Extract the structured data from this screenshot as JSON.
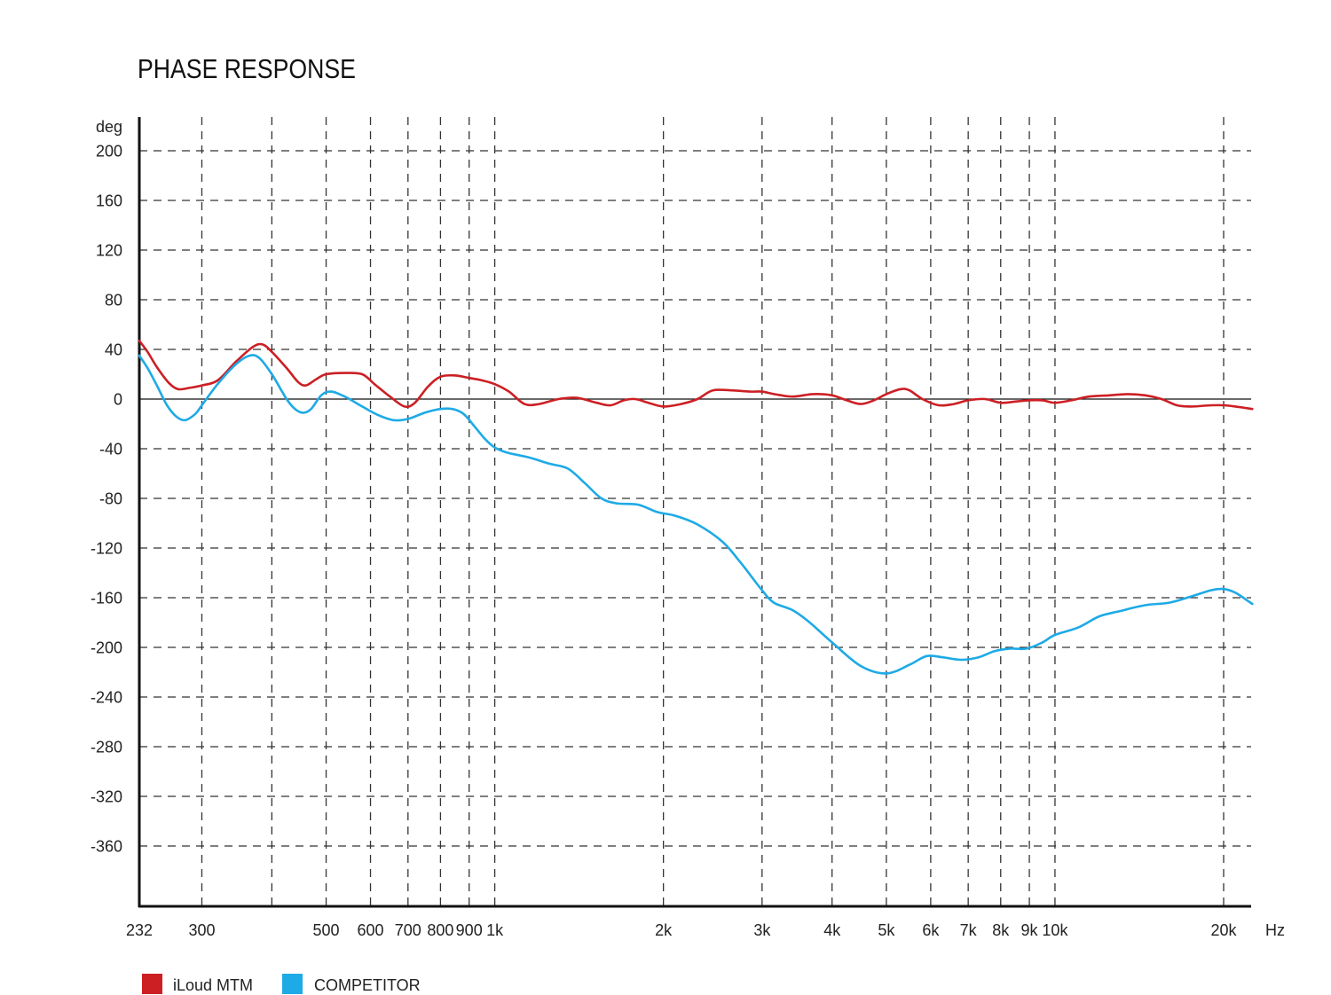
{
  "chart_data": {
    "type": "line",
    "title": "PHASE RESPONSE",
    "ylabel": "deg",
    "xlabel": "Hz",
    "x_scale": "log",
    "xlim": [
      232,
      23000
    ],
    "ylim": [
      -405,
      228
    ],
    "grid": true,
    "legend_position": "bottom-left",
    "x_ticks": [
      {
        "value": 232,
        "label": "232"
      },
      {
        "value": 300,
        "label": "300"
      },
      {
        "value": 400,
        "label": ""
      },
      {
        "value": 500,
        "label": "500"
      },
      {
        "value": 600,
        "label": "600"
      },
      {
        "value": 700,
        "label": "700"
      },
      {
        "value": 800,
        "label": "800"
      },
      {
        "value": 900,
        "label": "900"
      },
      {
        "value": 1000,
        "label": "1k"
      },
      {
        "value": 2000,
        "label": "2k"
      },
      {
        "value": 3000,
        "label": "3k"
      },
      {
        "value": 4000,
        "label": "4k"
      },
      {
        "value": 5000,
        "label": "5k"
      },
      {
        "value": 6000,
        "label": "6k"
      },
      {
        "value": 7000,
        "label": "7k"
      },
      {
        "value": 8000,
        "label": "8k"
      },
      {
        "value": 9000,
        "label": "9k"
      },
      {
        "value": 10000,
        "label": "10k"
      },
      {
        "value": 20000,
        "label": "20k"
      }
    ],
    "y_ticks": [
      200,
      160,
      120,
      80,
      40,
      0,
      -40,
      -80,
      -120,
      -160,
      -200,
      -240,
      -280,
      -320,
      -360
    ],
    "series": [
      {
        "name": "iLoud MTM",
        "color": "#cc1f24",
        "points": [
          [
            232,
            47
          ],
          [
            240,
            38
          ],
          [
            250,
            25
          ],
          [
            262,
            13
          ],
          [
            272,
            8
          ],
          [
            285,
            9
          ],
          [
            300,
            11
          ],
          [
            320,
            15
          ],
          [
            345,
            30
          ],
          [
            370,
            42
          ],
          [
            385,
            44
          ],
          [
            400,
            38
          ],
          [
            425,
            25
          ],
          [
            445,
            14
          ],
          [
            460,
            11
          ],
          [
            480,
            16
          ],
          [
            500,
            20
          ],
          [
            540,
            21
          ],
          [
            580,
            20
          ],
          [
            610,
            12
          ],
          [
            650,
            2
          ],
          [
            690,
            -6
          ],
          [
            720,
            -3
          ],
          [
            760,
            10
          ],
          [
            800,
            18
          ],
          [
            850,
            19
          ],
          [
            900,
            17
          ],
          [
            950,
            15
          ],
          [
            1000,
            12
          ],
          [
            1060,
            6
          ],
          [
            1130,
            -4
          ],
          [
            1200,
            -4
          ],
          [
            1300,
            0
          ],
          [
            1400,
            1
          ],
          [
            1520,
            -3
          ],
          [
            1610,
            -5
          ],
          [
            1700,
            -1
          ],
          [
            1780,
            0
          ],
          [
            1880,
            -3
          ],
          [
            2000,
            -6
          ],
          [
            2150,
            -4
          ],
          [
            2300,
            0
          ],
          [
            2450,
            7
          ],
          [
            2650,
            7
          ],
          [
            2850,
            6
          ],
          [
            3000,
            6
          ],
          [
            3150,
            4
          ],
          [
            3400,
            2
          ],
          [
            3700,
            4
          ],
          [
            4000,
            3
          ],
          [
            4250,
            -1
          ],
          [
            4500,
            -4
          ],
          [
            4750,
            -1
          ],
          [
            5000,
            4
          ],
          [
            5300,
            8
          ],
          [
            5500,
            7
          ],
          [
            5800,
            0
          ],
          [
            6200,
            -5
          ],
          [
            6600,
            -4
          ],
          [
            7000,
            -1
          ],
          [
            7500,
            0
          ],
          [
            8000,
            -3
          ],
          [
            8500,
            -2
          ],
          [
            9000,
            -1
          ],
          [
            9500,
            -1
          ],
          [
            10000,
            -3
          ],
          [
            10700,
            -1
          ],
          [
            11500,
            2
          ],
          [
            12500,
            3
          ],
          [
            13500,
            4
          ],
          [
            14500,
            3
          ],
          [
            15500,
            0
          ],
          [
            16500,
            -5
          ],
          [
            17500,
            -6
          ],
          [
            19000,
            -5
          ],
          [
            20000,
            -5
          ],
          [
            21000,
            -6
          ],
          [
            22500,
            -8
          ]
        ]
      },
      {
        "name": "COMPETITOR",
        "color": "#1eaae6",
        "points": [
          [
            232,
            35
          ],
          [
            240,
            25
          ],
          [
            250,
            10
          ],
          [
            260,
            -5
          ],
          [
            270,
            -14
          ],
          [
            280,
            -17
          ],
          [
            292,
            -12
          ],
          [
            300,
            -5
          ],
          [
            320,
            12
          ],
          [
            345,
            28
          ],
          [
            365,
            35
          ],
          [
            380,
            33
          ],
          [
            400,
            20
          ],
          [
            425,
            0
          ],
          [
            440,
            -8
          ],
          [
            455,
            -11
          ],
          [
            470,
            -8
          ],
          [
            490,
            3
          ],
          [
            510,
            6
          ],
          [
            540,
            2
          ],
          [
            580,
            -6
          ],
          [
            620,
            -13
          ],
          [
            660,
            -17
          ],
          [
            700,
            -16
          ],
          [
            750,
            -11
          ],
          [
            800,
            -8
          ],
          [
            840,
            -8
          ],
          [
            880,
            -12
          ],
          [
            920,
            -22
          ],
          [
            960,
            -32
          ],
          [
            1000,
            -39
          ],
          [
            1050,
            -43
          ],
          [
            1150,
            -47
          ],
          [
            1250,
            -52
          ],
          [
            1350,
            -56
          ],
          [
            1450,
            -68
          ],
          [
            1550,
            -80
          ],
          [
            1650,
            -84
          ],
          [
            1800,
            -85
          ],
          [
            1950,
            -91
          ],
          [
            2100,
            -94
          ],
          [
            2300,
            -101
          ],
          [
            2550,
            -115
          ],
          [
            2750,
            -132
          ],
          [
            3000,
            -154
          ],
          [
            3150,
            -164
          ],
          [
            3400,
            -170
          ],
          [
            3650,
            -180
          ],
          [
            4000,
            -196
          ],
          [
            4500,
            -215
          ],
          [
            5000,
            -221
          ],
          [
            5500,
            -214
          ],
          [
            5900,
            -207
          ],
          [
            6300,
            -208
          ],
          [
            6800,
            -210
          ],
          [
            7300,
            -208
          ],
          [
            7800,
            -203
          ],
          [
            8300,
            -201
          ],
          [
            8900,
            -201
          ],
          [
            9500,
            -196
          ],
          [
            10000,
            -190
          ],
          [
            11000,
            -184
          ],
          [
            12000,
            -175
          ],
          [
            13000,
            -171
          ],
          [
            14500,
            -166
          ],
          [
            16000,
            -164
          ],
          [
            17500,
            -159
          ],
          [
            19000,
            -154
          ],
          [
            20000,
            -153
          ],
          [
            21000,
            -156
          ],
          [
            22000,
            -162
          ],
          [
            22500,
            -165
          ]
        ]
      }
    ]
  }
}
